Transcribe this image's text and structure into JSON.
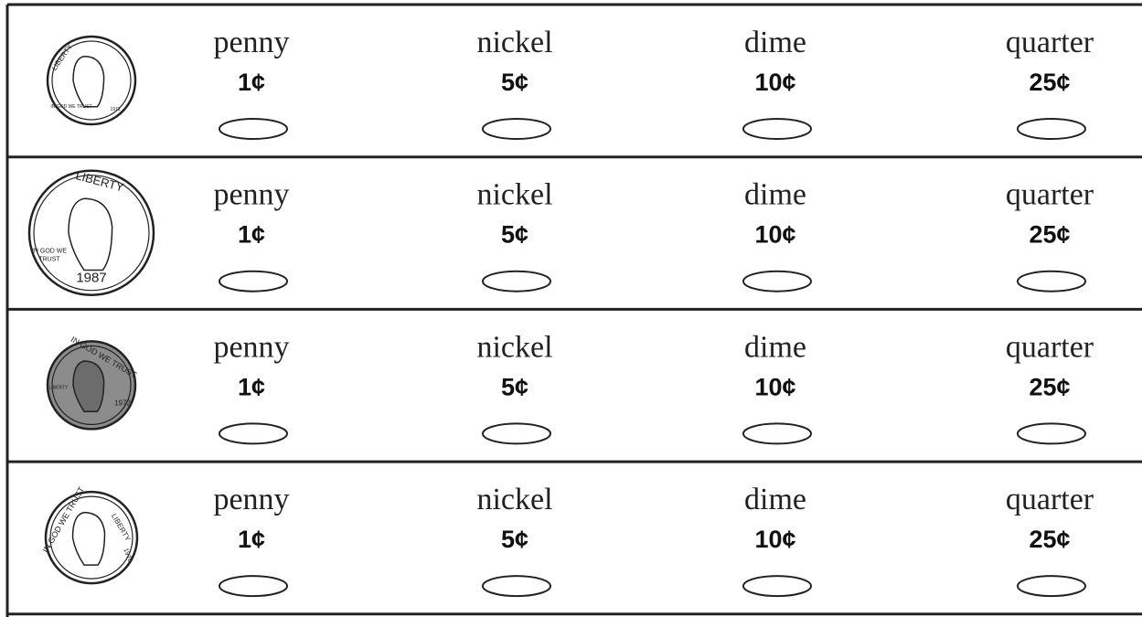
{
  "rows": [
    {
      "coin": {
        "texts": [
          "LIBERTY",
          "IN GOD WE TRUST",
          "1971"
        ]
      },
      "options": [
        {
          "name": "penny",
          "value": "1¢"
        },
        {
          "name": "nickel",
          "value": "5¢"
        },
        {
          "name": "dime",
          "value": "10¢"
        },
        {
          "name": "quarter",
          "value": "25¢"
        }
      ]
    },
    {
      "coin": {
        "texts": [
          "LIBERTY",
          "IN GOD WE",
          "TRUST",
          "1987"
        ]
      },
      "options": [
        {
          "name": "penny",
          "value": "1¢"
        },
        {
          "name": "nickel",
          "value": "5¢"
        },
        {
          "name": "dime",
          "value": "10¢"
        },
        {
          "name": "quarter",
          "value": "25¢"
        }
      ]
    },
    {
      "coin": {
        "texts": [
          "IN GOD WE TRUST",
          "LIBERTY",
          "1972"
        ]
      },
      "options": [
        {
          "name": "penny",
          "value": "1¢"
        },
        {
          "name": "nickel",
          "value": "5¢"
        },
        {
          "name": "dime",
          "value": "10¢"
        },
        {
          "name": "quarter",
          "value": "25¢"
        }
      ]
    },
    {
      "coin": {
        "texts": [
          "IN GOD WE TRUST",
          "LIBERTY",
          "1976"
        ]
      },
      "options": [
        {
          "name": "penny",
          "value": "1¢"
        },
        {
          "name": "nickel",
          "value": "5¢"
        },
        {
          "name": "dime",
          "value": "10¢"
        },
        {
          "name": "quarter",
          "value": "25¢"
        }
      ]
    }
  ]
}
